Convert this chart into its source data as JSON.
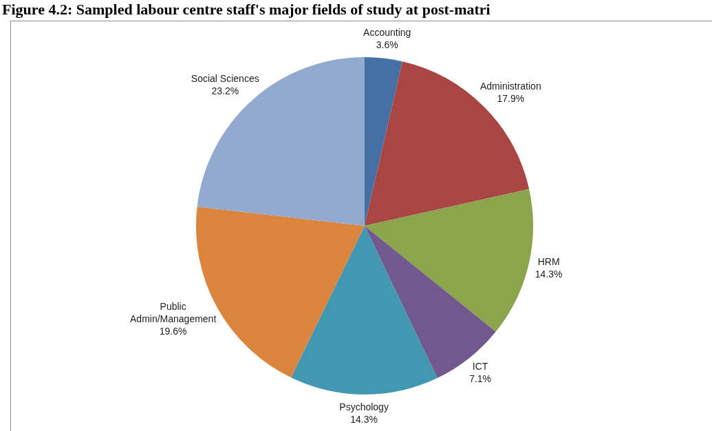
{
  "chart_data": {
    "type": "pie",
    "title": "Figure 4.2: Sampled labour centre staff's major fields of study at post-matri",
    "categories": [
      "Accounting",
      "Administration",
      "HRM",
      "ICT",
      "Psychology",
      "Public Admin/Management",
      "Social Sciences"
    ],
    "values": [
      3.6,
      17.9,
      14.3,
      7.1,
      14.3,
      19.6,
      23.2
    ],
    "colors": [
      "#4470a5",
      "#a94643",
      "#8aa54b",
      "#71588f",
      "#4298b0",
      "#db843d",
      "#93a9cf"
    ],
    "value_labels": [
      "3.6%",
      "17.9%",
      "14.3%",
      "7.1%",
      "14.3%",
      "19.6%",
      "23.2%"
    ]
  }
}
